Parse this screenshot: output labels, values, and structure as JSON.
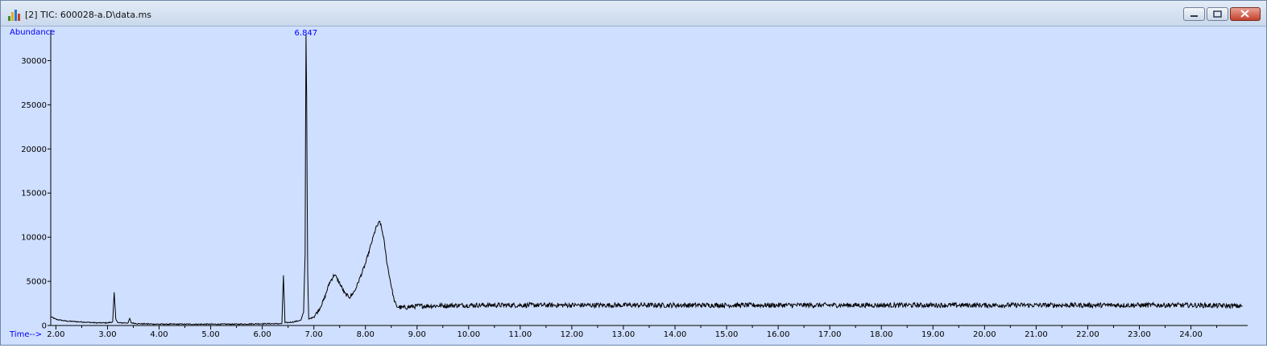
{
  "window": {
    "title": "[2] TIC: 600028-a.D\\data.ms",
    "icons": [
      "chromatogram-app-icon",
      "minimize-icon",
      "restore-icon",
      "close-icon"
    ]
  },
  "chart_data": {
    "type": "line",
    "ylabel": "Abundance",
    "xlabel": "Time-->",
    "ylim": [
      0,
      33500
    ],
    "xlim": [
      1.9,
      25.1
    ],
    "y_ticks": [
      0,
      5000,
      10000,
      15000,
      20000,
      25000,
      30000
    ],
    "y_tick_labels": [
      "0",
      "5000",
      "10000",
      "15000",
      "20000",
      "25000",
      "30000"
    ],
    "x_ticks": [
      2,
      3,
      4,
      5,
      6,
      7,
      8,
      9,
      10,
      11,
      12,
      13,
      14,
      15,
      16,
      17,
      18,
      19,
      20,
      21,
      22,
      23,
      24
    ],
    "x_tick_labels": [
      "2.00",
      "3.00",
      "4.00",
      "5.00",
      "6.00",
      "7.00",
      "8.00",
      "9.00",
      "10.00",
      "11.00",
      "12.00",
      "13.00",
      "14.00",
      "15.00",
      "16.00",
      "17.00",
      "18.00",
      "19.00",
      "20.00",
      "21.00",
      "22.00",
      "23.00",
      "24.00"
    ],
    "peak_label": {
      "text": "6.847",
      "x": 6.847
    },
    "grid": false,
    "colors": {
      "trace": "#000000",
      "axis_text": "#0000ff",
      "background": "#cfdfff"
    },
    "series": [
      {
        "x": [
          1.9,
          2.0,
          2.2,
          2.5,
          2.8,
          3.0,
          3.1,
          3.13,
          3.16,
          3.2,
          3.4,
          3.43,
          3.46,
          3.6,
          4.0,
          4.5,
          5.0,
          5.5,
          6.0,
          6.3,
          6.38,
          6.41,
          6.44,
          6.6,
          6.75,
          6.8,
          6.83,
          6.847,
          6.86,
          6.88,
          6.9,
          7.0,
          7.1,
          7.2,
          7.3,
          7.4,
          7.5,
          7.6,
          7.7,
          7.8,
          7.9,
          8.0,
          8.1,
          8.2,
          8.28,
          8.35,
          8.42,
          8.5,
          8.55,
          8.6,
          8.7,
          9.0,
          10.0,
          11.0,
          12.0,
          13.0,
          14.0,
          15.0,
          16.0,
          17.0,
          18.0,
          19.0,
          20.0,
          21.0,
          22.0,
          23.0,
          24.0,
          25.0
        ],
        "y": [
          1000,
          700,
          500,
          400,
          300,
          300,
          400,
          3700,
          800,
          300,
          300,
          800,
          300,
          200,
          150,
          150,
          150,
          150,
          200,
          200,
          200,
          5700,
          300,
          400,
          600,
          1500,
          8000,
          33000,
          26000,
          6000,
          700,
          1000,
          1800,
          3000,
          4800,
          5800,
          4800,
          3600,
          3200,
          4000,
          5500,
          7000,
          9000,
          11000,
          11800,
          10000,
          7000,
          4500,
          3000,
          2200,
          2000,
          2200,
          2300,
          2300,
          2300,
          2300,
          2300,
          2300,
          2300,
          2300,
          2300,
          2300,
          2300,
          2300,
          2300,
          2300,
          2300,
          2200
        ]
      }
    ]
  }
}
